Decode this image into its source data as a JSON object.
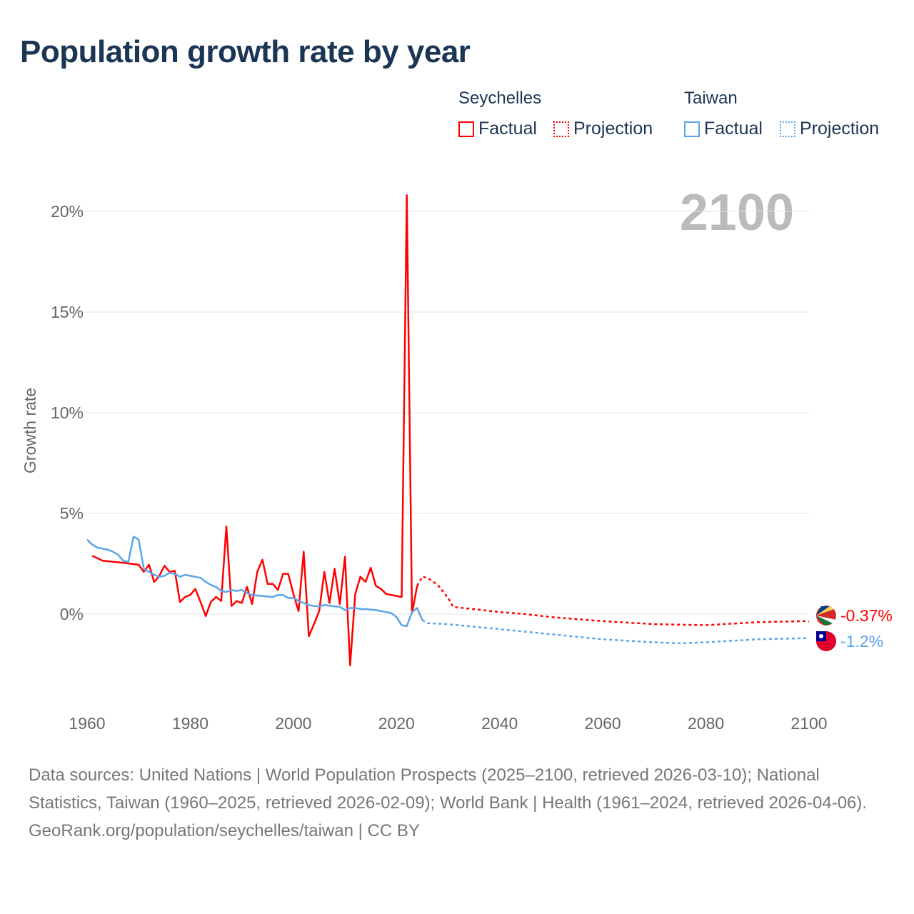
{
  "title": "Population growth rate by year",
  "legend": {
    "groups": [
      {
        "name": "Seychelles",
        "color": "#ff0000",
        "factual": "Factual",
        "projection": "Projection"
      },
      {
        "name": "Taiwan",
        "color": "#5ba4ea",
        "factual": "Factual",
        "projection": "Projection"
      }
    ]
  },
  "year_label": "2100",
  "footer": {
    "sources": "Data sources: United Nations | World Population Prospects (2025–2100, retrieved 2026-03-10); National Statistics, Taiwan (1960–2025, retrieved 2026-02-09); World Bank | Health (1961–2024, retrieved 2026-04-06).",
    "credit": "GeoRank.org/population/seychelles/taiwan | CC BY"
  },
  "chart_data": {
    "type": "line",
    "title": "Population growth rate by year",
    "xlabel": "",
    "ylabel": "Growth rate",
    "xlim": [
      1960,
      2100
    ],
    "ylim": [
      -3.5,
      21
    ],
    "xticks": [
      1960,
      1980,
      2000,
      2020,
      2040,
      2060,
      2080,
      2100
    ],
    "xtick_labels": [
      "1960",
      "1980",
      "2000",
      "2020",
      "2040",
      "2060",
      "2080",
      "2100"
    ],
    "yticks": [
      0,
      5,
      10,
      15,
      20
    ],
    "ytick_labels": [
      "0%",
      "5%",
      "10%",
      "15%",
      "20%"
    ],
    "grid": true,
    "legend_position": "top-right",
    "series": [
      {
        "name": "Seychelles",
        "color": "#ff0000",
        "end_label": "-0.37%",
        "factual": [
          [
            1961,
            2.9
          ],
          [
            1963,
            2.65
          ],
          [
            1965,
            2.6
          ],
          [
            1967,
            2.55
          ],
          [
            1970,
            2.45
          ],
          [
            1971,
            2.1
          ],
          [
            1972,
            2.45
          ],
          [
            1973,
            1.6
          ],
          [
            1974,
            1.9
          ],
          [
            1975,
            2.4
          ],
          [
            1976,
            2.1
          ],
          [
            1977,
            2.15
          ],
          [
            1978,
            0.6
          ],
          [
            1979,
            0.85
          ],
          [
            1980,
            0.95
          ],
          [
            1981,
            1.25
          ],
          [
            1982,
            0.6
          ],
          [
            1983,
            -0.1
          ],
          [
            1984,
            0.6
          ],
          [
            1985,
            0.85
          ],
          [
            1986,
            0.65
          ],
          [
            1987,
            4.35
          ],
          [
            1988,
            0.4
          ],
          [
            1989,
            0.65
          ],
          [
            1990,
            0.55
          ],
          [
            1991,
            1.35
          ],
          [
            1992,
            0.5
          ],
          [
            1993,
            2.1
          ],
          [
            1994,
            2.7
          ],
          [
            1995,
            1.5
          ],
          [
            1996,
            1.5
          ],
          [
            1997,
            1.2
          ],
          [
            1998,
            2.0
          ],
          [
            1999,
            2.0
          ],
          [
            2000,
            1.0
          ],
          [
            2001,
            0.15
          ],
          [
            2002,
            3.1
          ],
          [
            2003,
            -1.1
          ],
          [
            2004,
            -0.5
          ],
          [
            2005,
            0.15
          ],
          [
            2006,
            2.1
          ],
          [
            2007,
            0.55
          ],
          [
            2008,
            2.25
          ],
          [
            2009,
            0.5
          ],
          [
            2010,
            2.85
          ],
          [
            2011,
            -2.55
          ],
          [
            2012,
            1.0
          ],
          [
            2013,
            1.85
          ],
          [
            2014,
            1.6
          ],
          [
            2015,
            2.3
          ],
          [
            2016,
            1.4
          ],
          [
            2017,
            1.25
          ],
          [
            2018,
            1.0
          ],
          [
            2019,
            0.95
          ],
          [
            2020,
            0.9
          ],
          [
            2021,
            0.85
          ],
          [
            2022,
            20.8
          ],
          [
            2023,
            0.05
          ],
          [
            2024,
            1.4
          ]
        ],
        "projection": [
          [
            2024,
            1.4
          ],
          [
            2025,
            1.85
          ],
          [
            2026,
            1.8
          ],
          [
            2028,
            1.45
          ],
          [
            2030,
            0.8
          ],
          [
            2031,
            0.35
          ],
          [
            2035,
            0.25
          ],
          [
            2040,
            0.1
          ],
          [
            2045,
            0.0
          ],
          [
            2050,
            -0.15
          ],
          [
            2060,
            -0.35
          ],
          [
            2070,
            -0.5
          ],
          [
            2080,
            -0.55
          ],
          [
            2090,
            -0.4
          ],
          [
            2099,
            -0.35
          ],
          [
            2100,
            -0.37
          ]
        ]
      },
      {
        "name": "Taiwan",
        "color": "#5ba4ea",
        "end_label": "-1.2%",
        "factual": [
          [
            1960,
            3.7
          ],
          [
            1961,
            3.45
          ],
          [
            1962,
            3.3
          ],
          [
            1964,
            3.2
          ],
          [
            1965,
            3.1
          ],
          [
            1966,
            2.95
          ],
          [
            1967,
            2.65
          ],
          [
            1968,
            2.6
          ],
          [
            1969,
            3.85
          ],
          [
            1970,
            3.7
          ],
          [
            1971,
            2.25
          ],
          [
            1972,
            2.1
          ],
          [
            1973,
            1.95
          ],
          [
            1974,
            1.85
          ],
          [
            1975,
            1.9
          ],
          [
            1976,
            2.05
          ],
          [
            1977,
            2.0
          ],
          [
            1978,
            1.85
          ],
          [
            1979,
            1.95
          ],
          [
            1980,
            1.9
          ],
          [
            1981,
            1.85
          ],
          [
            1982,
            1.8
          ],
          [
            1983,
            1.6
          ],
          [
            1984,
            1.45
          ],
          [
            1985,
            1.35
          ],
          [
            1986,
            1.15
          ],
          [
            1987,
            1.1
          ],
          [
            1988,
            1.2
          ],
          [
            1989,
            1.15
          ],
          [
            1990,
            1.2
          ],
          [
            1991,
            1.05
          ],
          [
            1992,
            0.95
          ],
          [
            1994,
            0.9
          ],
          [
            1996,
            0.85
          ],
          [
            1997,
            0.95
          ],
          [
            1998,
            0.95
          ],
          [
            1999,
            0.8
          ],
          [
            2000,
            0.8
          ],
          [
            2001,
            0.65
          ],
          [
            2002,
            0.55
          ],
          [
            2003,
            0.45
          ],
          [
            2004,
            0.4
          ],
          [
            2005,
            0.38
          ],
          [
            2006,
            0.45
          ],
          [
            2007,
            0.42
          ],
          [
            2008,
            0.38
          ],
          [
            2009,
            0.36
          ],
          [
            2010,
            0.2
          ],
          [
            2011,
            0.3
          ],
          [
            2012,
            0.3
          ],
          [
            2013,
            0.25
          ],
          [
            2014,
            0.25
          ],
          [
            2016,
            0.2
          ],
          [
            2018,
            0.1
          ],
          [
            2019,
            0.05
          ],
          [
            2020,
            -0.15
          ],
          [
            2021,
            -0.55
          ],
          [
            2022,
            -0.6
          ],
          [
            2023,
            0.1
          ],
          [
            2024,
            0.3
          ],
          [
            2025,
            -0.3
          ]
        ],
        "projection": [
          [
            2025,
            -0.3
          ],
          [
            2026,
            -0.45
          ],
          [
            2030,
            -0.5
          ],
          [
            2040,
            -0.75
          ],
          [
            2050,
            -1.0
          ],
          [
            2060,
            -1.25
          ],
          [
            2070,
            -1.4
          ],
          [
            2075,
            -1.45
          ],
          [
            2080,
            -1.4
          ],
          [
            2090,
            -1.25
          ],
          [
            2099,
            -1.2
          ],
          [
            2100,
            -1.2
          ]
        ]
      }
    ]
  }
}
